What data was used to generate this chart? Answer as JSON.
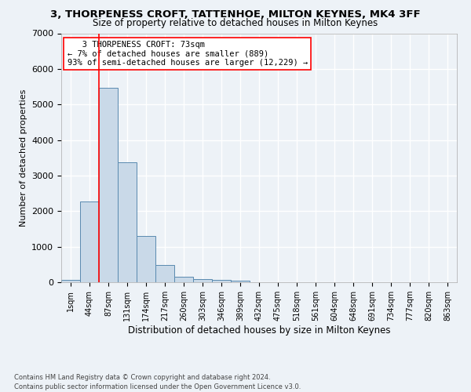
{
  "title_line1": "3, THORPENESS CROFT, TATTENHOE, MILTON KEYNES, MK4 3FF",
  "title_line2": "Size of property relative to detached houses in Milton Keynes",
  "xlabel": "Distribution of detached houses by size in Milton Keynes",
  "ylabel": "Number of detached properties",
  "footnote": "Contains HM Land Registry data © Crown copyright and database right 2024.\nContains public sector information licensed under the Open Government Licence v3.0.",
  "bar_labels": [
    "1sqm",
    "44sqm",
    "87sqm",
    "131sqm",
    "174sqm",
    "217sqm",
    "260sqm",
    "303sqm",
    "346sqm",
    "389sqm",
    "432sqm",
    "475sqm",
    "518sqm",
    "561sqm",
    "604sqm",
    "648sqm",
    "691sqm",
    "734sqm",
    "777sqm",
    "820sqm",
    "863sqm"
  ],
  "bar_values": [
    70,
    2270,
    5470,
    3380,
    1310,
    490,
    165,
    90,
    65,
    50,
    0,
    0,
    0,
    0,
    0,
    0,
    0,
    0,
    0,
    0,
    0
  ],
  "bar_color": "#c9d9e8",
  "bar_edge_color": "#5a8ab0",
  "ylim": [
    0,
    7000
  ],
  "yticks": [
    0,
    1000,
    2000,
    3000,
    4000,
    5000,
    6000,
    7000
  ],
  "annotation_line1": "   3 THORPENESS CROFT: 73sqm",
  "annotation_line2": "← 7% of detached houses are smaller (889)",
  "annotation_line3": "93% of semi-detached houses are larger (12,229) →",
  "bg_color": "#edf2f7",
  "grid_color": "#ffffff",
  "red_line_x": 1.5,
  "title1_fontsize": 9.5,
  "title2_fontsize": 8.5,
  "ylabel_fontsize": 8,
  "xlabel_fontsize": 8.5,
  "annot_fontsize": 7.5,
  "footnote_fontsize": 6
}
